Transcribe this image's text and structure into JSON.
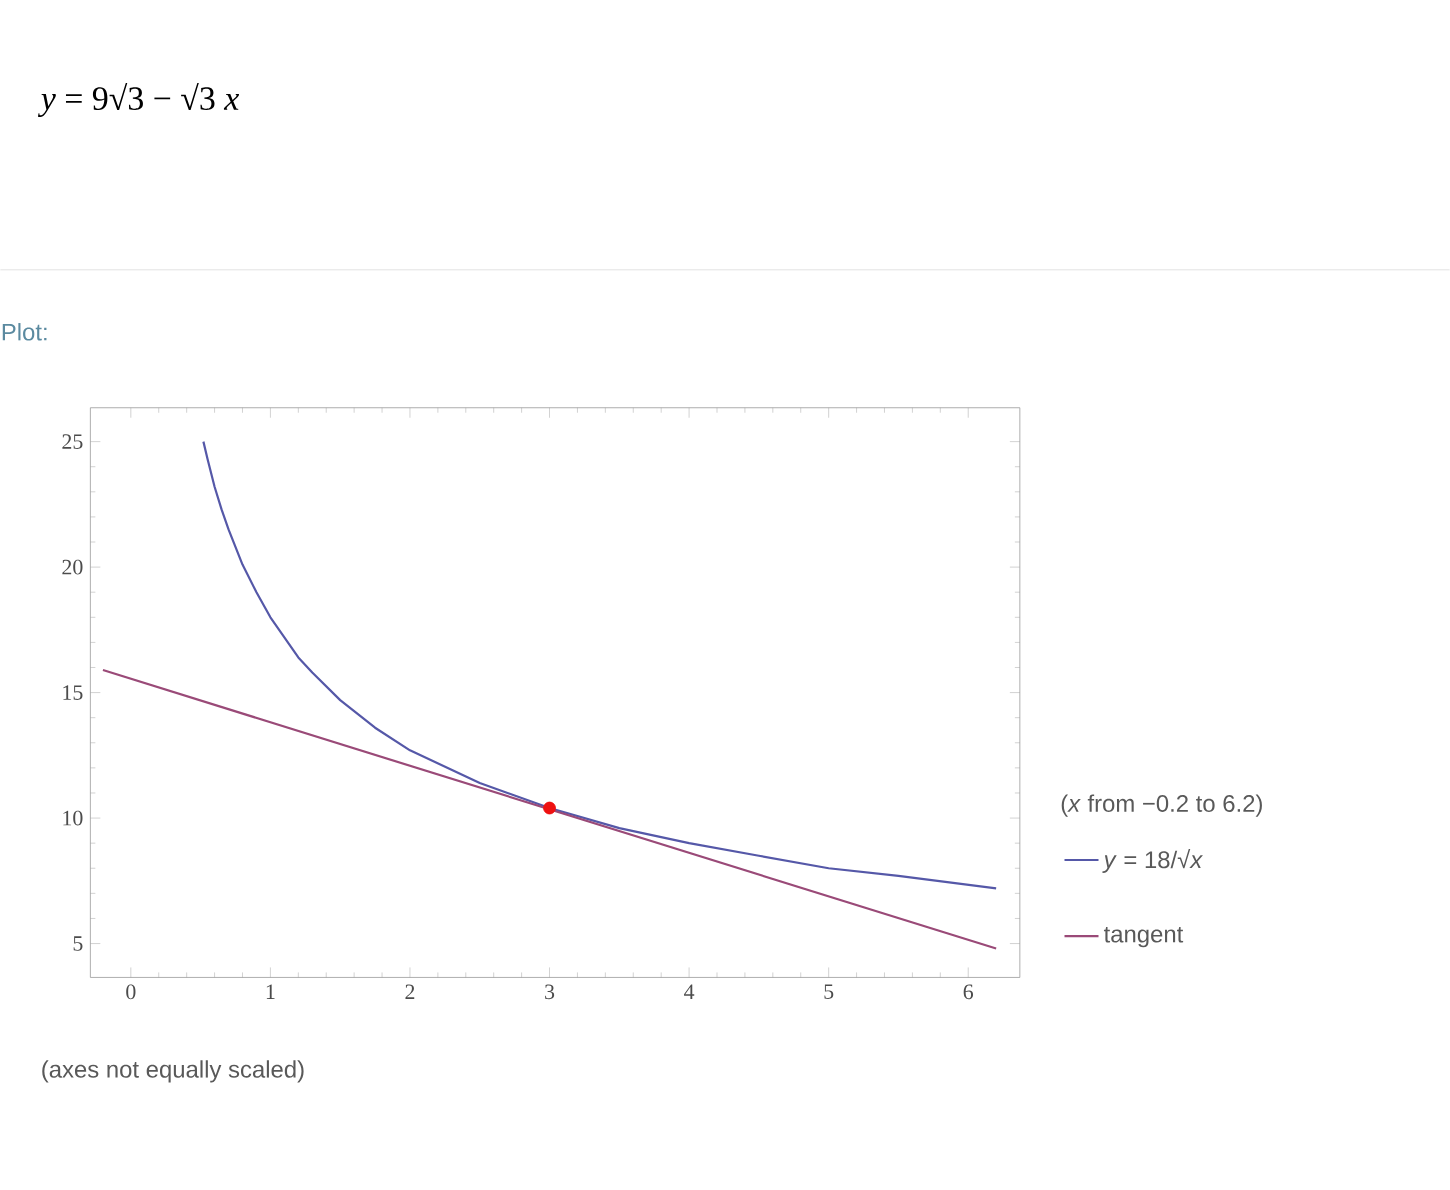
{
  "chart_data": {
    "type": "line",
    "annotations": [
      "*y* = 9√3 − √3 *x*",
      "Plot:",
      "(*x* from −0.2 to 6.2)",
      "(axes not equally scaled)"
    ],
    "xlim": [
      -0.29,
      6.37
    ],
    "ylim": [
      3.65,
      26.35
    ],
    "xticks": [
      0,
      1,
      2,
      3,
      4,
      5,
      6
    ],
    "yticks": [
      5,
      10,
      15,
      20,
      25
    ],
    "grid": false,
    "legend": "right",
    "series": [
      {
        "name": "*y* = 18/√*x*",
        "color": "#5558a8",
        "marker": "none",
        "x": [
          0.52,
          0.55,
          0.6,
          0.65,
          0.7,
          0.75,
          0.8,
          0.9,
          1,
          1.1,
          1.2,
          1.3,
          1.5,
          1.75,
          2,
          2.5,
          3,
          3.5,
          4,
          4.5,
          5,
          5.5,
          6.2
        ],
        "values": [
          25.0,
          24.3,
          23.2,
          22.3,
          21.5,
          20.8,
          20.1,
          19.0,
          18.0,
          17.2,
          16.4,
          15.8,
          14.7,
          13.6,
          12.7,
          11.4,
          10.4,
          9.6,
          9.0,
          8.5,
          8.0,
          7.7,
          7.2
        ]
      },
      {
        "name": "tangent",
        "color": "#9a4a78",
        "marker": "none",
        "x": [
          -0.2,
          6.2
        ],
        "values": [
          15.9,
          4.8
        ]
      },
      {
        "type": "scatter",
        "color": "#ee1111",
        "marker": "circle",
        "x": [
          3
        ],
        "values": [
          10.4
        ]
      }
    ]
  }
}
